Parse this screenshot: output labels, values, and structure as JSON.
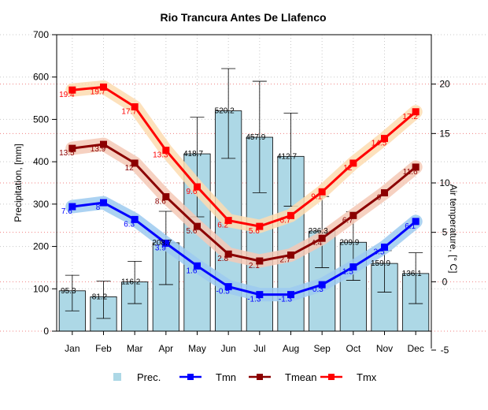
{
  "chart_data": {
    "type": "bar",
    "title": "Rio Trancura Antes De Llafenco",
    "ylabel_left": "Precipitation, [mm]",
    "ylabel_right": "Air temperature, [° C]",
    "ylim_left": [
      0,
      700
    ],
    "ylim_right": [
      -5,
      25
    ],
    "yticks_left": [
      "0",
      "100",
      "200",
      "300",
      "400",
      "500",
      "600",
      "700"
    ],
    "yticks_right": [
      "-5",
      "0",
      "5",
      "10",
      "15",
      "20"
    ],
    "categories": [
      "Jan",
      "Feb",
      "Mar",
      "Apr",
      "May",
      "Jun",
      "Jul",
      "Aug",
      "Sep",
      "Oct",
      "Nov",
      "Dec"
    ],
    "grid": true,
    "legend_position": "bottom",
    "precipitation": {
      "name": "Prec.",
      "color": "#add8e6",
      "values": [
        95.3,
        81.2,
        116.2,
        208.7,
        418.7,
        520.2,
        457.9,
        412.7,
        236.3,
        209.9,
        159.9,
        136.1
      ],
      "labels": [
        "95.3",
        "81.2",
        "116.2",
        "208.7",
        "418.7",
        "520.2",
        "457.9",
        "412.7",
        "236.3",
        "209.9",
        "159.9",
        "136.1"
      ],
      "error_low": [
        48,
        30,
        65,
        110,
        270,
        408,
        327,
        295,
        150,
        120,
        92,
        65
      ],
      "error_high": [
        132,
        118,
        165,
        283,
        505,
        620,
        590,
        515,
        318,
        282,
        190,
        185
      ]
    },
    "series": [
      {
        "name": "Tmn",
        "color": "#0000ff",
        "band_color": "#9ccaf0",
        "values": [
          7.6,
          8,
          6.3,
          3.9,
          1.6,
          -0.5,
          -1.3,
          -1.3,
          -0.3,
          1.5,
          3.5,
          6.1
        ],
        "labels": [
          "7.6",
          "8",
          "6.3",
          "3.9",
          "1.6",
          "-0.5",
          "-1.3",
          "-1.3",
          "-0.3",
          "1.5",
          "3.5",
          "6.1"
        ]
      },
      {
        "name": "Tmean",
        "color": "#8b0000",
        "band_color": "#f5c9b6",
        "values": [
          13.5,
          13.9,
          12,
          8.6,
          5.6,
          2.8,
          2.1,
          2.7,
          4.4,
          6.7,
          9,
          11.6
        ],
        "labels": [
          "13.5",
          "13.9",
          "12",
          "8.6",
          "5.6",
          "2.8",
          "2.1",
          "2.7",
          "4.4",
          "6.7",
          "9",
          "11.6"
        ]
      },
      {
        "name": "Tmx",
        "color": "#ff0000",
        "band_color": "#fddcb0",
        "values": [
          19.4,
          19.7,
          17.7,
          13.3,
          9.6,
          6.2,
          5.6,
          6.7,
          9.1,
          12,
          14.5,
          17.2
        ],
        "labels": [
          "19.4",
          "19.7",
          "17.7",
          "13.3",
          "9.6",
          "6.2",
          "5.6",
          "6.7",
          "9.1",
          "12",
          "14.5",
          "17.2"
        ]
      }
    ]
  }
}
